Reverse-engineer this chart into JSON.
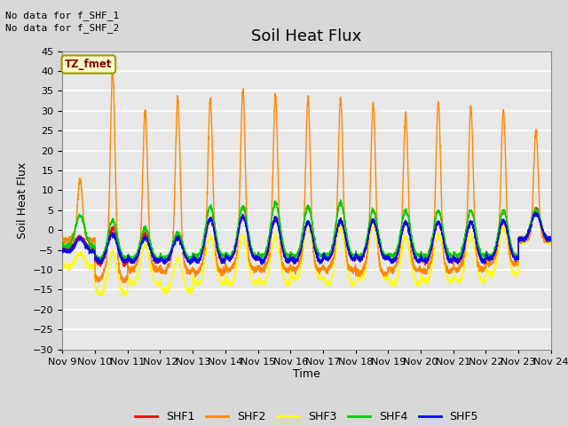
{
  "title": "Soil Heat Flux",
  "ylabel": "Soil Heat Flux",
  "xlabel": "Time",
  "note_line1": "No data for f_SHF_1",
  "note_line2": "No data for f_SHF_2",
  "legend_label": "TZ_fmet",
  "series_labels": [
    "SHF1",
    "SHF2",
    "SHF3",
    "SHF4",
    "SHF5"
  ],
  "series_colors": [
    "#ff0000",
    "#ff8800",
    "#ffff00",
    "#00cc00",
    "#0000ff"
  ],
  "ylim": [
    -30,
    45
  ],
  "yticks": [
    -30,
    -25,
    -20,
    -15,
    -10,
    -5,
    0,
    5,
    10,
    15,
    20,
    25,
    30,
    35,
    40,
    45
  ],
  "bg_color": "#d8d8d8",
  "plot_bg_color": "#e8e8e8",
  "grid_color": "#ffffff",
  "title_fontsize": 13,
  "label_fontsize": 9,
  "tick_fontsize": 8,
  "legend_box_color": "#ffffcc",
  "legend_box_edge": "#999900"
}
